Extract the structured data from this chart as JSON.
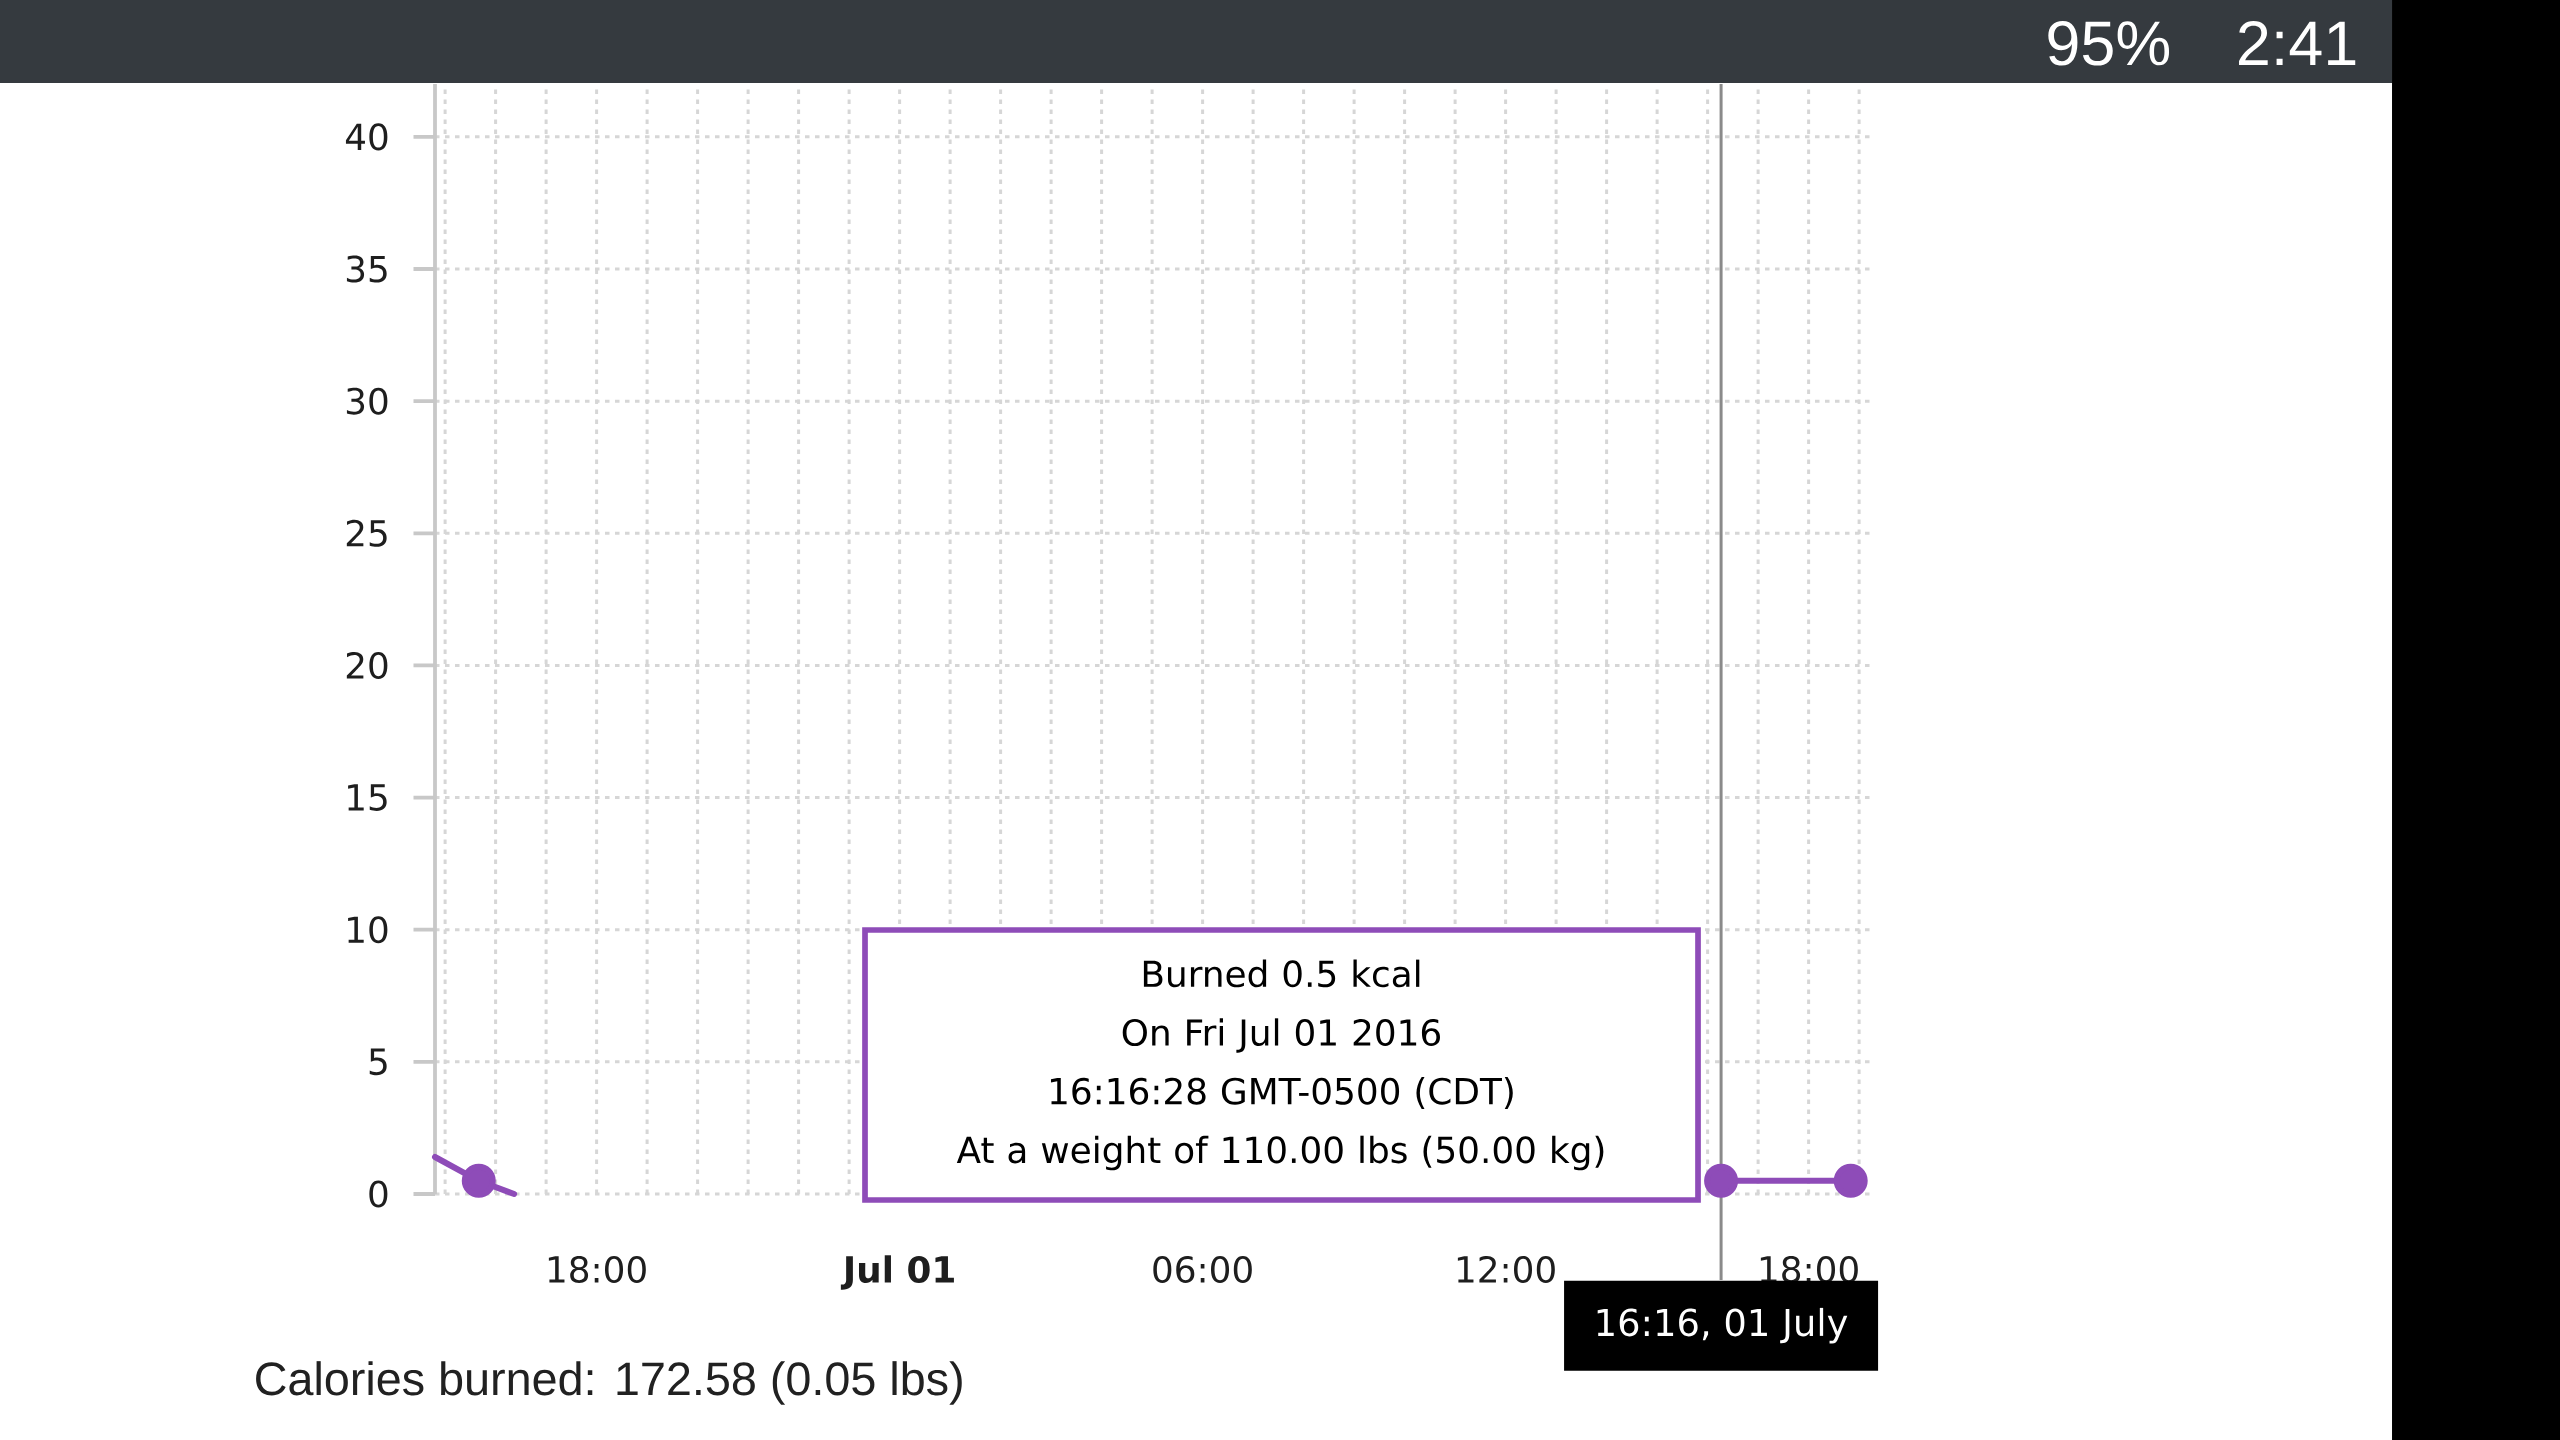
{
  "chart_data": {
    "type": "line",
    "xlim": [
      "2016-06-30T14:48",
      "2016-07-01T19:15"
    ],
    "ylim": [
      0,
      42
    ],
    "xticks": [
      {
        "value": "2016-06-30T18:00",
        "label": "18:00"
      },
      {
        "value": "2016-07-01T00:00",
        "label": "Jul 01"
      },
      {
        "value": "2016-07-01T06:00",
        "label": "06:00"
      },
      {
        "value": "2016-07-01T12:00",
        "label": "12:00"
      },
      {
        "value": "2016-07-01T18:00",
        "label": "18:00"
      }
    ],
    "yticks": [
      0,
      5,
      10,
      15,
      20,
      25,
      30,
      35,
      40
    ],
    "grid": true,
    "series": [
      {
        "color": "#8e4cb8",
        "marker": "none",
        "x": [
          "2016-06-30T14:48",
          "2016-06-30T15:40",
          "2016-06-30T16:22",
          "2016-07-01T00:00",
          "2016-07-01T16:16",
          "2016-07-01T18:50"
        ],
        "values": [
          1.4,
          0.5,
          0,
          null,
          0.5,
          0.5
        ]
      },
      {
        "type": "scatter",
        "color": "#8e4cb8",
        "marker": "circle",
        "x": [
          "2016-06-30T15:40",
          "2016-07-01T16:16",
          "2016-07-01T18:50"
        ],
        "values": [
          0.5,
          0.5,
          0.5
        ]
      }
    ],
    "ref_lines": [
      {
        "axis": "x",
        "value": "2016-07-01T16:16",
        "label": "16:16, 01 July",
        "color": "#8a8a8a"
      }
    ],
    "annotations": [
      "Burned 0.5 kcal",
      "On Fri Jul 01 2016 16:16:28 GMT-0500 (CDT)",
      "At a weight of 110.00 lbs (50.00 kg)",
      "Calories burned: 172.58 (0.05 lbs)",
      "95%",
      "2:41"
    ]
  }
}
